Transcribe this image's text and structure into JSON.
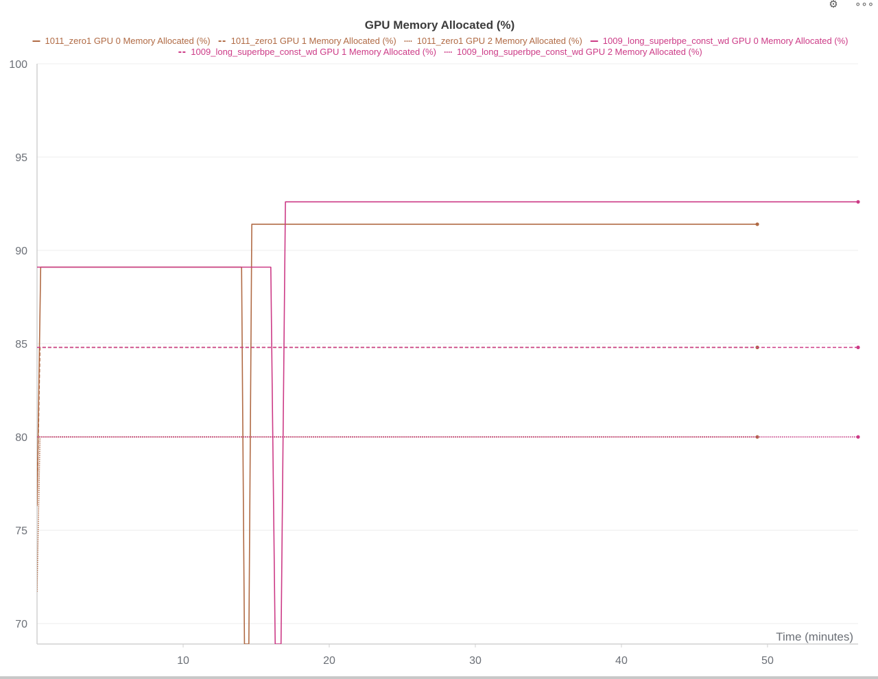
{
  "toolbar": {
    "settings_icon": "gear-icon",
    "more_icon": "more-horizontal-icon"
  },
  "chart_data": {
    "type": "line",
    "title": "GPU Memory Allocated (%)",
    "xlabel": "Time (minutes)",
    "ylabel": "",
    "xlim": [
      0,
      56.2
    ],
    "ylim": [
      68.9,
      100
    ],
    "xticks": [
      10,
      20,
      30,
      40,
      50
    ],
    "yticks": [
      70,
      75,
      80,
      85,
      90,
      95,
      100
    ],
    "grid": true,
    "legend_position": "top",
    "series": [
      {
        "name": "1011_zero1 GPU 0 Memory Allocated (%)",
        "color": "#b06a44",
        "dash": "solid",
        "x": [
          0,
          0.25,
          14.0,
          14.2,
          14.3,
          14.5,
          14.7,
          49.3
        ],
        "y": [
          76.3,
          89.1,
          89.1,
          68.9,
          68.9,
          68.9,
          91.4,
          91.4
        ]
      },
      {
        "name": "1011_zero1 GPU 1 Memory Allocated (%)",
        "color": "#b06a44",
        "dash": "dashed",
        "x": [
          0,
          0.2,
          49.3
        ],
        "y": [
          76.4,
          84.8,
          84.8
        ]
      },
      {
        "name": "1011_zero1 GPU 2 Memory Allocated (%)",
        "color": "#b06a44",
        "dash": "dotted",
        "x": [
          0,
          0.2,
          49.3
        ],
        "y": [
          71.7,
          80.0,
          80.0
        ]
      },
      {
        "name": "1009_long_superbpe_const_wd GPU 0 Memory Allocated (%)",
        "color": "#cc3a86",
        "dash": "solid",
        "x": [
          0,
          16.0,
          16.3,
          16.5,
          16.7,
          17.0,
          56.2
        ],
        "y": [
          89.1,
          89.1,
          68.9,
          68.9,
          68.9,
          92.6,
          92.6
        ]
      },
      {
        "name": "1009_long_superbpe_const_wd GPU 1 Memory Allocated (%)",
        "color": "#cc3a86",
        "dash": "dashed",
        "x": [
          0,
          56.2
        ],
        "y": [
          84.8,
          84.8
        ]
      },
      {
        "name": "1009_long_superbpe_const_wd GPU 2 Memory Allocated (%)",
        "color": "#cc3a86",
        "dash": "dotted",
        "x": [
          0,
          56.2
        ],
        "y": [
          80.0,
          80.0
        ]
      }
    ]
  }
}
